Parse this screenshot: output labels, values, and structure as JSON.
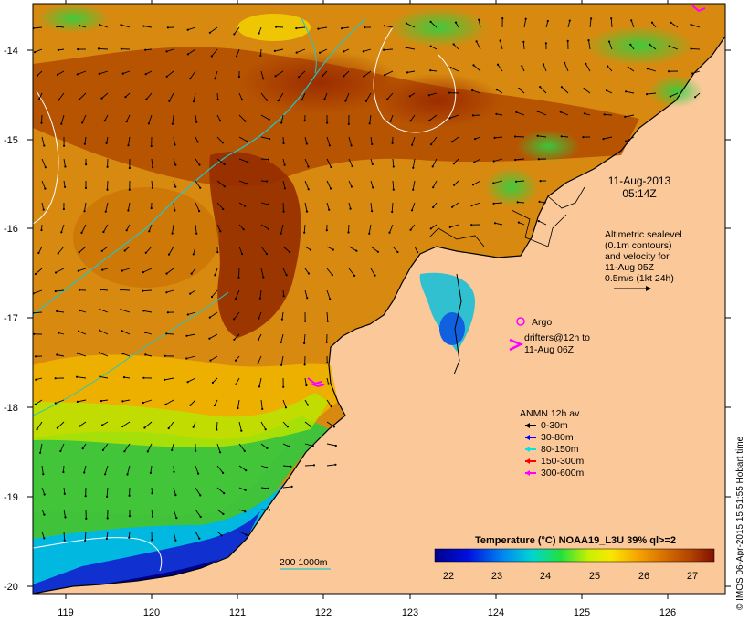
{
  "map": {
    "date": "11-Aug-2013",
    "time": "05:14Z",
    "lat_labels": [
      "-14",
      "-15",
      "-16",
      "-17",
      "-18",
      "-19",
      "-20"
    ],
    "lon_labels": [
      "119",
      "120",
      "121",
      "122",
      "123",
      "124",
      "125",
      "126"
    ]
  },
  "altimetry": {
    "line1": "Altimetric sealevel",
    "line2": "(0.1m contours)",
    "line3": "and velocity for",
    "line4": "11-Aug 05Z",
    "scale": "0.5m/s (1kt 24h)"
  },
  "argo": {
    "label": "Argo"
  },
  "drifters": {
    "line1": "drifters@12h to",
    "line2": "11-Aug 06Z"
  },
  "anmn": {
    "title": "ANMN 12h av.",
    "items": [
      {
        "label": "0-30m",
        "color": "#000000"
      },
      {
        "label": "30-80m",
        "color": "#0000ff"
      },
      {
        "label": "80-150m",
        "color": "#00e5e5"
      },
      {
        "label": "150-300m",
        "color": "#ff0000"
      },
      {
        "label": "300-600m",
        "color": "#ff00ff"
      }
    ]
  },
  "isobath": {
    "label": "200  1000m"
  },
  "colorbar": {
    "title": "Temperature (°C) NOAA19_L3U 39% ql>=2",
    "min": 21.6,
    "max": 27.4,
    "ticks": [
      "22",
      "23",
      "24",
      "25",
      "26",
      "27"
    ]
  },
  "credit": "© IMOS 06-Apr-2015 15:51:55 Hobart time",
  "colors": {
    "land": "#fbc89a",
    "frame": "#000000",
    "isobath": "#22c6c6"
  }
}
